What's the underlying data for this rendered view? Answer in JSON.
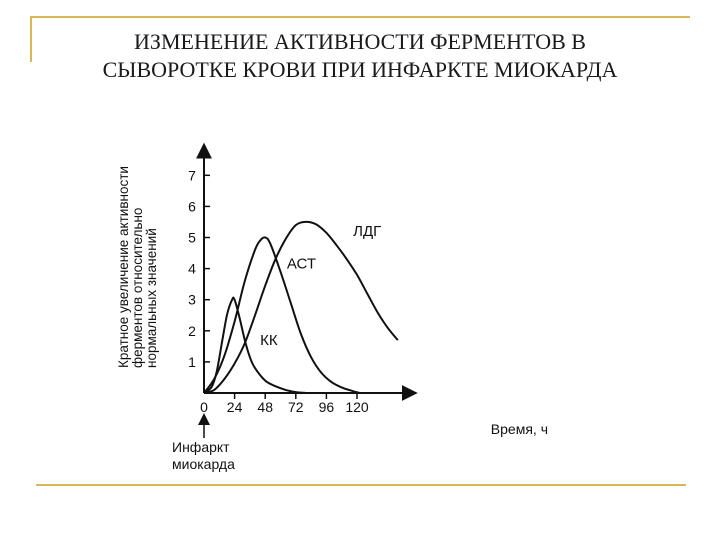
{
  "slide": {
    "title": "ИЗМЕНЕНИЕ АКТИВНОСТИ ФЕРМЕНТОВ В\nСЫВОРОТКЕ КРОВИ ПРИ ИНФАРКТЕ МИОКАРДА"
  },
  "chart_data": {
    "type": "line",
    "ylabel": "Кратное увеличение активности\nферментов относительно\nнормальных значений",
    "xlabel": "Время, ч",
    "x_ticks": [
      0,
      24,
      48,
      72,
      96,
      120
    ],
    "y_ticks": [
      1,
      2,
      3,
      4,
      5,
      6,
      7
    ],
    "xlim": [
      0,
      152
    ],
    "ylim": [
      0,
      7.6
    ],
    "annotation": "Инфаркт\nмиокарда",
    "annotation_x": 0,
    "colors": {
      "line": "#111111",
      "frame": "#d6b85a"
    },
    "series": [
      {
        "name": "КК",
        "label_at": [
          44,
          1.55
        ],
        "points": [
          [
            0,
            0
          ],
          [
            6,
            0.2
          ],
          [
            10,
            0.7
          ],
          [
            14,
            1.6
          ],
          [
            18,
            2.5
          ],
          [
            22,
            3.0
          ],
          [
            24,
            3.0
          ],
          [
            28,
            2.4
          ],
          [
            32,
            1.7
          ],
          [
            36,
            1.15
          ],
          [
            40,
            0.8
          ],
          [
            48,
            0.4
          ],
          [
            56,
            0.22
          ],
          [
            64,
            0.1
          ],
          [
            72,
            0.03
          ],
          [
            80,
            0
          ]
        ]
      },
      {
        "name": "АСТ",
        "label_at": [
          65,
          4.0
        ],
        "points": [
          [
            0,
            0
          ],
          [
            8,
            0.45
          ],
          [
            16,
            1.2
          ],
          [
            24,
            2.3
          ],
          [
            32,
            3.6
          ],
          [
            40,
            4.6
          ],
          [
            44,
            4.9
          ],
          [
            48,
            5.0
          ],
          [
            52,
            4.8
          ],
          [
            60,
            3.9
          ],
          [
            68,
            2.9
          ],
          [
            76,
            1.9
          ],
          [
            84,
            1.15
          ],
          [
            92,
            0.65
          ],
          [
            100,
            0.35
          ],
          [
            108,
            0.18
          ],
          [
            116,
            0.07
          ],
          [
            122,
            0
          ]
        ]
      },
      {
        "name": "ЛДГ",
        "label_at": [
          117,
          5.05
        ],
        "points": [
          [
            0,
            0
          ],
          [
            8,
            0.1
          ],
          [
            16,
            0.45
          ],
          [
            24,
            0.95
          ],
          [
            32,
            1.6
          ],
          [
            40,
            2.5
          ],
          [
            48,
            3.45
          ],
          [
            56,
            4.3
          ],
          [
            64,
            4.95
          ],
          [
            72,
            5.4
          ],
          [
            80,
            5.5
          ],
          [
            88,
            5.42
          ],
          [
            96,
            5.15
          ],
          [
            104,
            4.75
          ],
          [
            112,
            4.3
          ],
          [
            120,
            3.8
          ],
          [
            128,
            3.2
          ],
          [
            136,
            2.6
          ],
          [
            144,
            2.1
          ],
          [
            152,
            1.7
          ]
        ]
      }
    ]
  }
}
